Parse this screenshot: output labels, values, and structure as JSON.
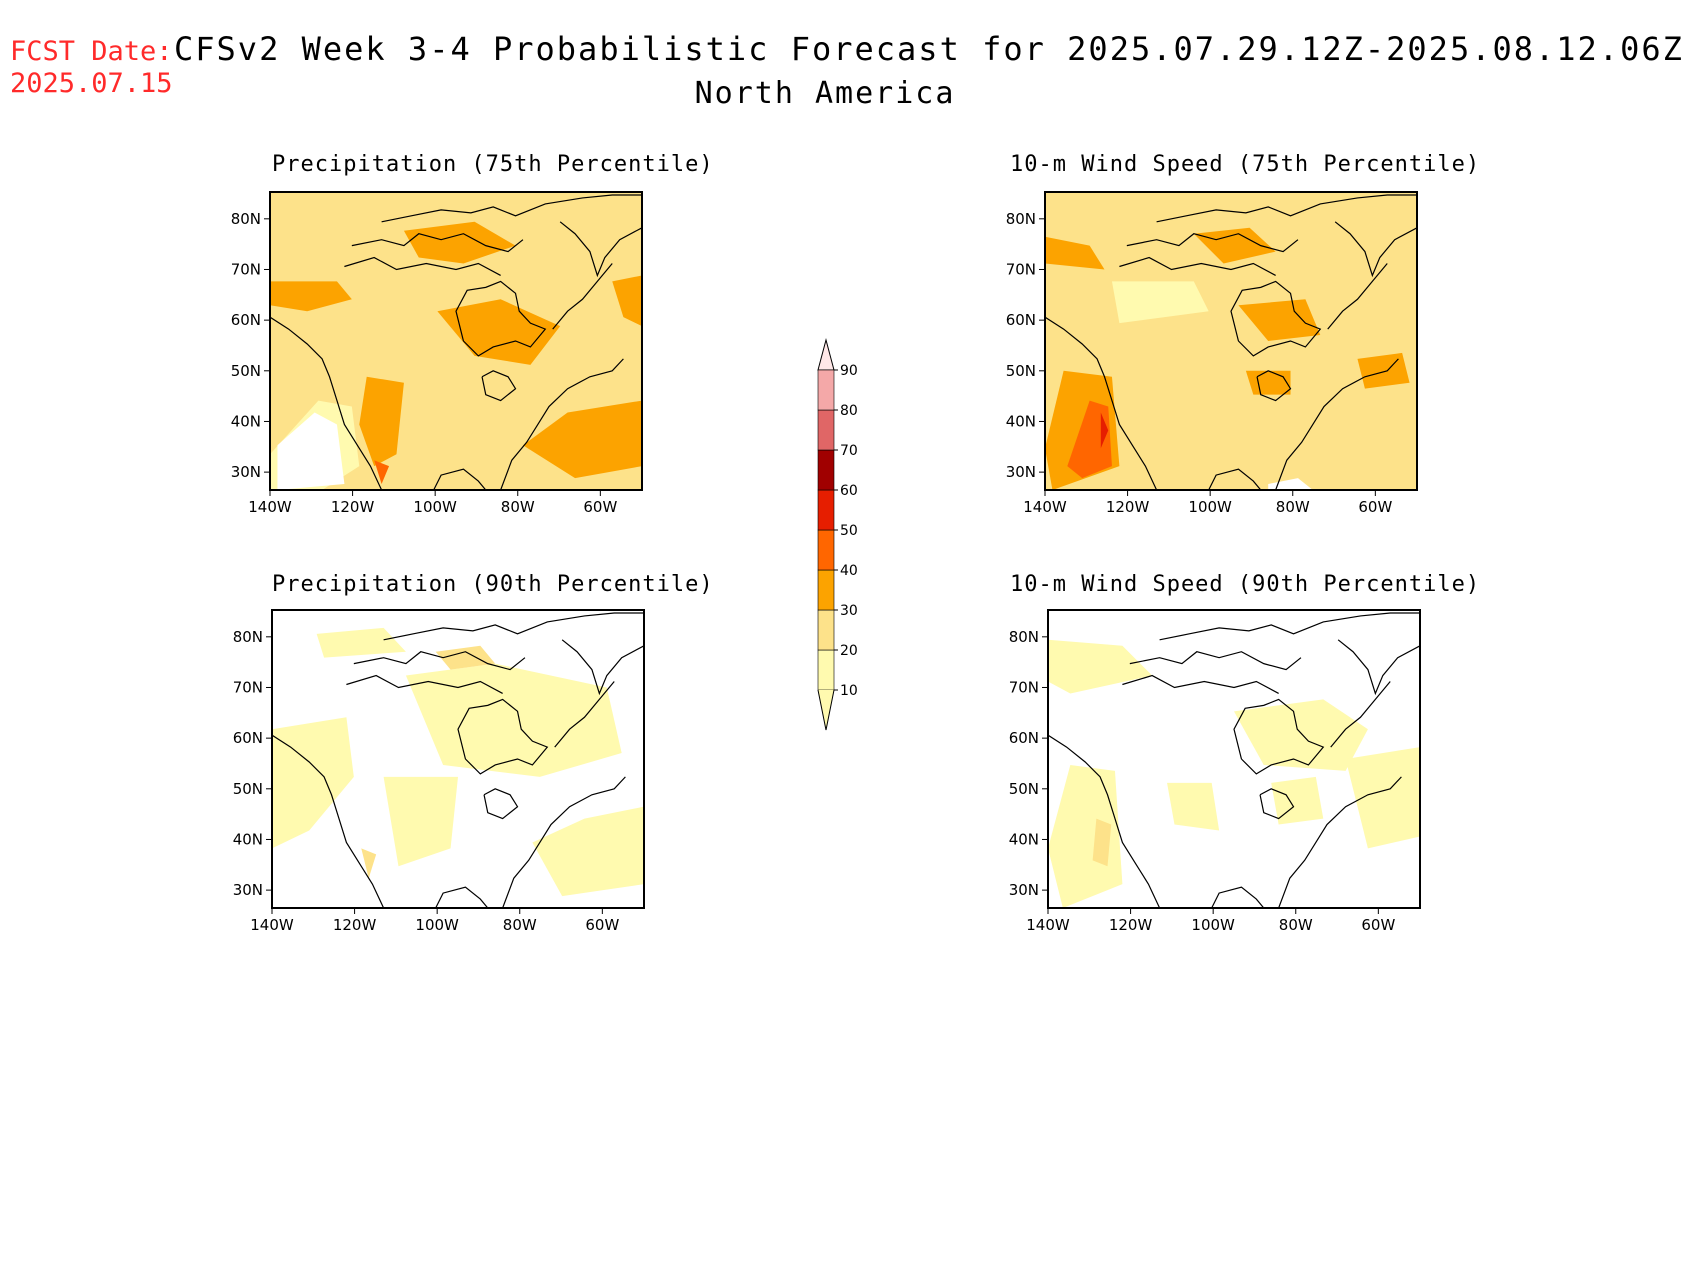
{
  "header": {
    "fcst_date_label": "FCST Date:",
    "fcst_date_value": "2025.07.15",
    "title": "CFSv2 Week 3-4 Probabilistic Forecast for 2025.07.29.12Z-2025.08.12.06Z",
    "region": "North America"
  },
  "panels": [
    {
      "id": "precip75",
      "title": "Precipitation (75th Percentile)"
    },
    {
      "id": "wind75",
      "title": "10-m Wind Speed (75th Percentile)"
    },
    {
      "id": "precip90",
      "title": "Precipitation (90th Percentile)"
    },
    {
      "id": "wind90",
      "title": "10-m Wind Speed (90th Percentile)"
    }
  ],
  "axes": {
    "lat_ticks": [
      "80N",
      "70N",
      "60N",
      "50N",
      "40N",
      "30N"
    ],
    "lon_ticks": [
      "140W",
      "120W",
      "100W",
      "80W",
      "60W"
    ]
  },
  "colorbar": {
    "levels": [
      "10",
      "20",
      "30",
      "40",
      "50",
      "60",
      "70",
      "80",
      "90"
    ],
    "colors": [
      "#fffaaf",
      "#fde28a",
      "#fca300",
      "#ff6600",
      "#e61e00",
      "#a00000",
      "#e06666",
      "#f4a8a8",
      "#ffe8e8"
    ]
  }
}
